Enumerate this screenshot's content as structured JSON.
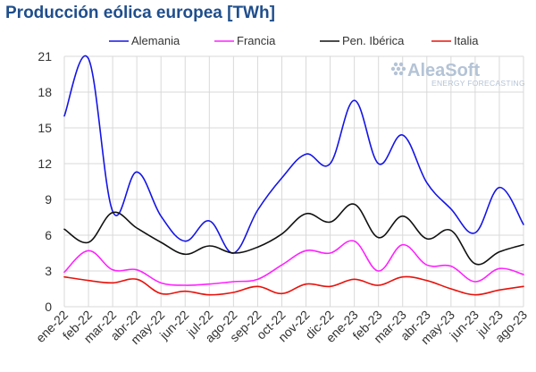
{
  "chart_data": {
    "type": "line",
    "title": "Producción eólica europea [TWh]",
    "categories": [
      "ene-22",
      "feb-22",
      "mar-22",
      "abr-22",
      "may-22",
      "jun-22",
      "jul-22",
      "ago-22",
      "sep-22",
      "oct-22",
      "nov-22",
      "dic-22",
      "ene-23",
      "feb-23",
      "mar-23",
      "abr-23",
      "may-23",
      "jun-23",
      "jul-23",
      "ago-23"
    ],
    "ylim": [
      0,
      21
    ],
    "yticks": [
      "0",
      "3",
      "6",
      "9",
      "12",
      "15",
      "18",
      "21"
    ],
    "grid": true,
    "legend_position": "top",
    "watermark": {
      "name": "AleaSoft",
      "tagline": "ENERGY FORECASTING"
    },
    "series": [
      {
        "name": "Alemania",
        "color": "#1515e6",
        "values": [
          16.0,
          20.8,
          8.0,
          11.3,
          7.6,
          5.5,
          7.2,
          4.5,
          8.1,
          10.8,
          12.8,
          12.0,
          17.3,
          12.0,
          14.4,
          10.4,
          8.2,
          6.2,
          10.0,
          6.9
        ]
      },
      {
        "name": "Francia",
        "color": "#ff22ff",
        "values": [
          2.9,
          4.7,
          3.1,
          3.1,
          2.0,
          1.8,
          1.9,
          2.1,
          2.3,
          3.5,
          4.7,
          4.5,
          5.5,
          3.0,
          5.2,
          3.5,
          3.4,
          2.1,
          3.2,
          2.7
        ]
      },
      {
        "name": "Pen. Ibérica",
        "color": "#111111",
        "values": [
          6.5,
          5.4,
          7.9,
          6.6,
          5.4,
          4.4,
          5.1,
          4.5,
          5.0,
          6.1,
          7.8,
          7.1,
          8.6,
          5.8,
          7.6,
          5.7,
          6.4,
          3.6,
          4.6,
          5.2
        ]
      },
      {
        "name": "Italia",
        "color": "#e8120c",
        "values": [
          2.5,
          2.2,
          2.0,
          2.3,
          1.1,
          1.3,
          1.0,
          1.2,
          1.7,
          1.1,
          1.9,
          1.7,
          2.3,
          1.8,
          2.5,
          2.2,
          1.5,
          1.0,
          1.4,
          1.7
        ]
      }
    ]
  }
}
